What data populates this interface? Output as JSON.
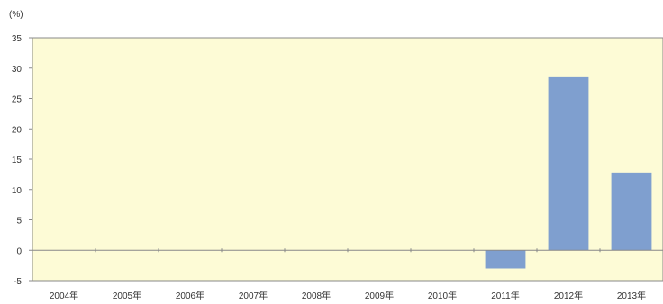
{
  "chart_data": {
    "type": "bar",
    "unit_label": "(%)",
    "categories": [
      "2004年",
      "2005年",
      "2006年",
      "2007年",
      "2008年",
      "2009年",
      "2010年",
      "2011年",
      "2012年",
      "2013年"
    ],
    "values": [
      0,
      0,
      0,
      0,
      0,
      0,
      0,
      -3,
      28.5,
      12.8
    ],
    "ylim": [
      -5,
      35
    ],
    "yticks": [
      -5,
      0,
      5,
      10,
      15,
      20,
      25,
      30,
      35
    ],
    "grid": false,
    "legend": "none",
    "colors": {
      "plot_background": "#fdfbd6",
      "bar": "#7f9fcf",
      "axis": "#888888"
    }
  }
}
